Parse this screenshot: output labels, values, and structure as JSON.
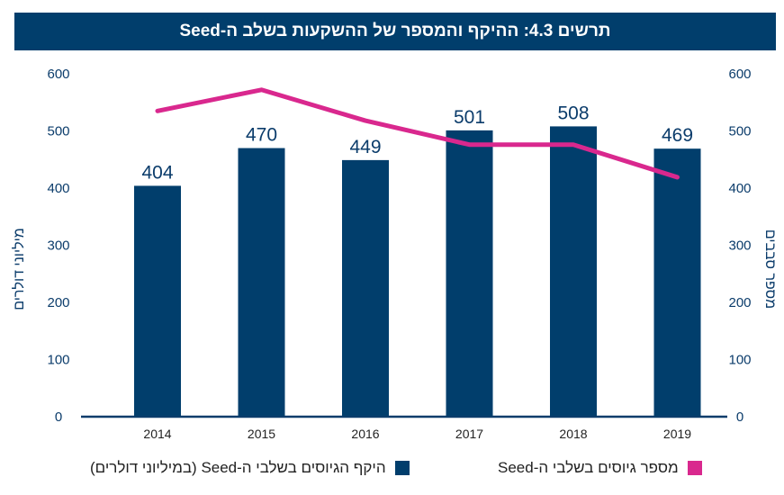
{
  "title": "תרשים 4.3: ההיקף והמספר של ההשקעות בשלב ה-Seed",
  "colors": {
    "title_bg": "#013e6c",
    "bars": "#013e6c",
    "line": "#d9288e",
    "axis": "#0b3c6b"
  },
  "chart_data": {
    "type": "bar",
    "title": "תרשים 4.3: ההיקף והמספר של ההשקעות בשלב ה-Seed",
    "categories": [
      "2014",
      "2015",
      "2016",
      "2017",
      "2018",
      "2019"
    ],
    "series": [
      {
        "name": "היקף הגיוסים בשלבי ה-Seed (במיליוני דולרים)",
        "type": "bar",
        "axis": "left",
        "values": [
          404,
          470,
          449,
          501,
          508,
          469
        ],
        "data_labels": [
          "404",
          "470",
          "449",
          "501",
          "508",
          "469"
        ]
      },
      {
        "name": "מספר גיוסים בשלבי ה-Seed",
        "type": "line",
        "axis": "right",
        "values": [
          535,
          572,
          518,
          476,
          476,
          419
        ]
      }
    ],
    "ylabel_left": "מיליוני דולרים",
    "ylabel_right": "מספר סבבים",
    "xlabel": "",
    "ylim_left": [
      0,
      600
    ],
    "ylim_right": [
      0,
      600
    ],
    "yticks_left": [
      "0",
      "100",
      "200",
      "300",
      "400",
      "500",
      "600"
    ],
    "yticks_right": [
      "0",
      "100",
      "200",
      "300",
      "400",
      "500",
      "600"
    ],
    "grid": false,
    "legend_position": "bottom"
  },
  "legend": {
    "bar_label": "היקף הגיוסים בשלבי ה-Seed (במיליוני דולרים)",
    "line_label": "מספר גיוסים בשלבי ה-Seed"
  }
}
